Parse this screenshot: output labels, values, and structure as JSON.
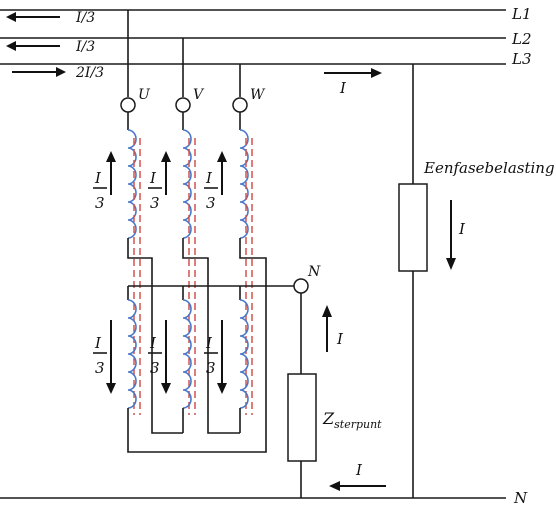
{
  "lines": {
    "l1": "L1",
    "l2": "L2",
    "l3": "L3",
    "n": "N"
  },
  "line_currents": {
    "l1": "I/3",
    "l2": "I/3",
    "l3": "2I/3"
  },
  "terminals": {
    "u": "U",
    "v": "V",
    "w": "W",
    "n": "N"
  },
  "winding_current": {
    "numerator": "I",
    "denominator": "3"
  },
  "load": {
    "label": "Eenfasebelasting",
    "current": "I"
  },
  "top_current": "I",
  "star_impedance": {
    "symbol": "Z",
    "subscript": "sterpunt",
    "current": "I"
  },
  "neutral_current": "I",
  "colors": {
    "wire": "#1a1a1a",
    "coil": "#4a78c8",
    "core": "#d2534e"
  }
}
